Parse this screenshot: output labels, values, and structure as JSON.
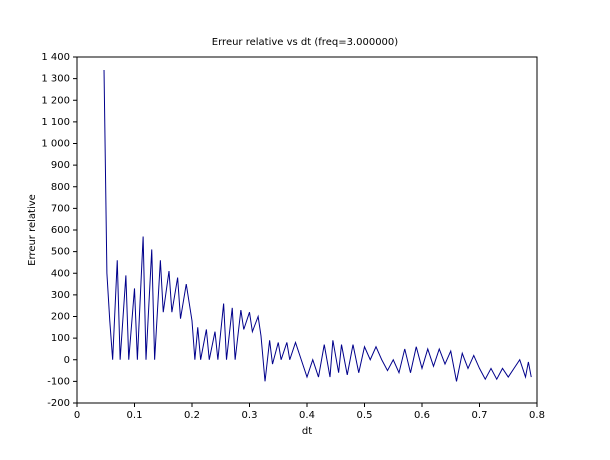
{
  "chart_data": {
    "type": "line",
    "title": "Erreur relative vs dt (freq=3.000000)",
    "x_label": "dt",
    "y_label": "Erreur relative",
    "x": [
      0.047,
      0.052,
      0.057,
      0.062,
      0.07,
      0.075,
      0.085,
      0.09,
      0.1,
      0.105,
      0.115,
      0.12,
      0.13,
      0.135,
      0.145,
      0.15,
      0.16,
      0.165,
      0.175,
      0.18,
      0.19,
      0.2,
      0.205,
      0.21,
      0.215,
      0.225,
      0.23,
      0.24,
      0.245,
      0.255,
      0.26,
      0.27,
      0.275,
      0.285,
      0.29,
      0.3,
      0.305,
      0.315,
      0.32,
      0.327,
      0.335,
      0.34,
      0.35,
      0.355,
      0.365,
      0.37,
      0.38,
      0.39,
      0.4,
      0.41,
      0.42,
      0.43,
      0.44,
      0.445,
      0.455,
      0.46,
      0.47,
      0.48,
      0.49,
      0.5,
      0.51,
      0.52,
      0.53,
      0.54,
      0.55,
      0.56,
      0.57,
      0.58,
      0.59,
      0.6,
      0.61,
      0.62,
      0.63,
      0.64,
      0.65,
      0.66,
      0.67,
      0.68,
      0.69,
      0.7,
      0.71,
      0.72,
      0.73,
      0.74,
      0.75,
      0.76,
      0.77,
      0.78,
      0.785,
      0.79
    ],
    "series": [
      {
        "color": "#00008b",
        "values": [
          1340,
          400,
          180,
          0,
          460,
          0,
          390,
          0,
          330,
          0,
          570,
          0,
          510,
          0,
          460,
          220,
          410,
          220,
          380,
          190,
          350,
          180,
          0,
          150,
          0,
          140,
          0,
          130,
          0,
          260,
          0,
          240,
          0,
          230,
          140,
          220,
          130,
          200,
          110,
          -100,
          90,
          -20,
          80,
          0,
          80,
          0,
          80,
          0,
          -80,
          0,
          -80,
          70,
          -80,
          90,
          -60,
          70,
          -70,
          70,
          -60,
          60,
          0,
          60,
          0,
          -50,
          0,
          -60,
          50,
          -60,
          60,
          -40,
          50,
          -30,
          50,
          -20,
          40,
          -100,
          30,
          -40,
          20,
          -40,
          -90,
          -40,
          -90,
          -40,
          -80,
          -40,
          0,
          -80,
          -10,
          -80
        ]
      }
    ],
    "xlim": [
      0,
      0.8
    ],
    "xticks": [
      0,
      0.1,
      0.2,
      0.3,
      0.4,
      0.5,
      0.6,
      0.7,
      0.8
    ],
    "ylim": [
      -200,
      1400
    ],
    "yticks": [
      -200,
      -100,
      0,
      100,
      200,
      300,
      400,
      500,
      600,
      700,
      800,
      900,
      {
        "value": 1000,
        "label": "1 000"
      },
      {
        "value": 1100,
        "label": "1 100"
      },
      {
        "value": 1200,
        "label": "1 200"
      },
      {
        "value": 1300,
        "label": "1 300"
      },
      {
        "value": 1400,
        "label": "1 400"
      }
    ],
    "grid": false
  }
}
